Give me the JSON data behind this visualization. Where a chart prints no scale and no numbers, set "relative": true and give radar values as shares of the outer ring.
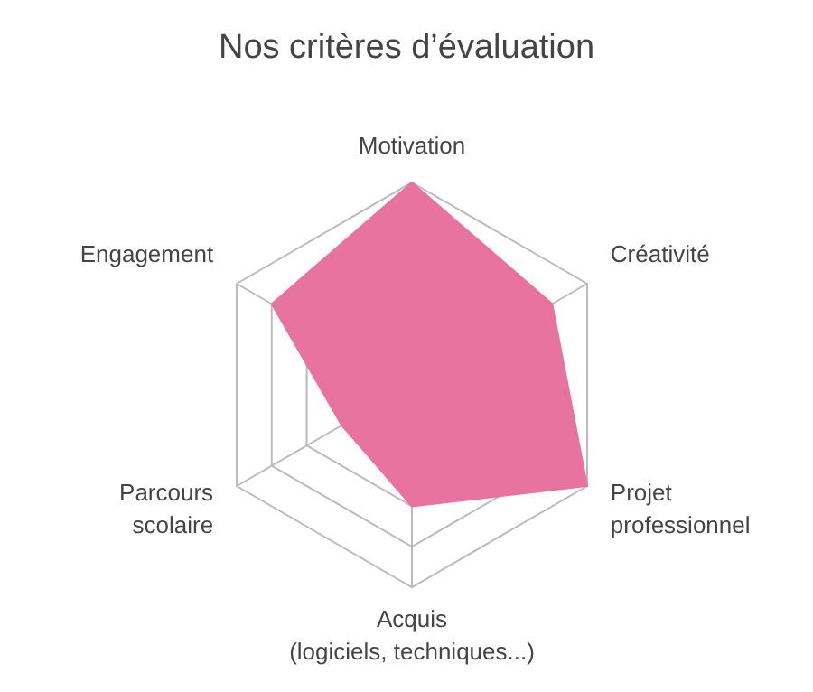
{
  "chart_data": {
    "type": "radar",
    "title": "Nos critères d’évaluation",
    "categories": [
      "Motivation",
      "Créativité",
      "Projet professionnel",
      "Acquis (logiciels, techniques...)",
      "Parcours scolaire",
      "Engagement"
    ],
    "relative": true,
    "grid": true,
    "legend": false,
    "series": [
      {
        "color": "#e8739e",
        "values": [
          1,
          0.8,
          1,
          0.6,
          0.4,
          0.8
        ]
      }
    ]
  }
}
